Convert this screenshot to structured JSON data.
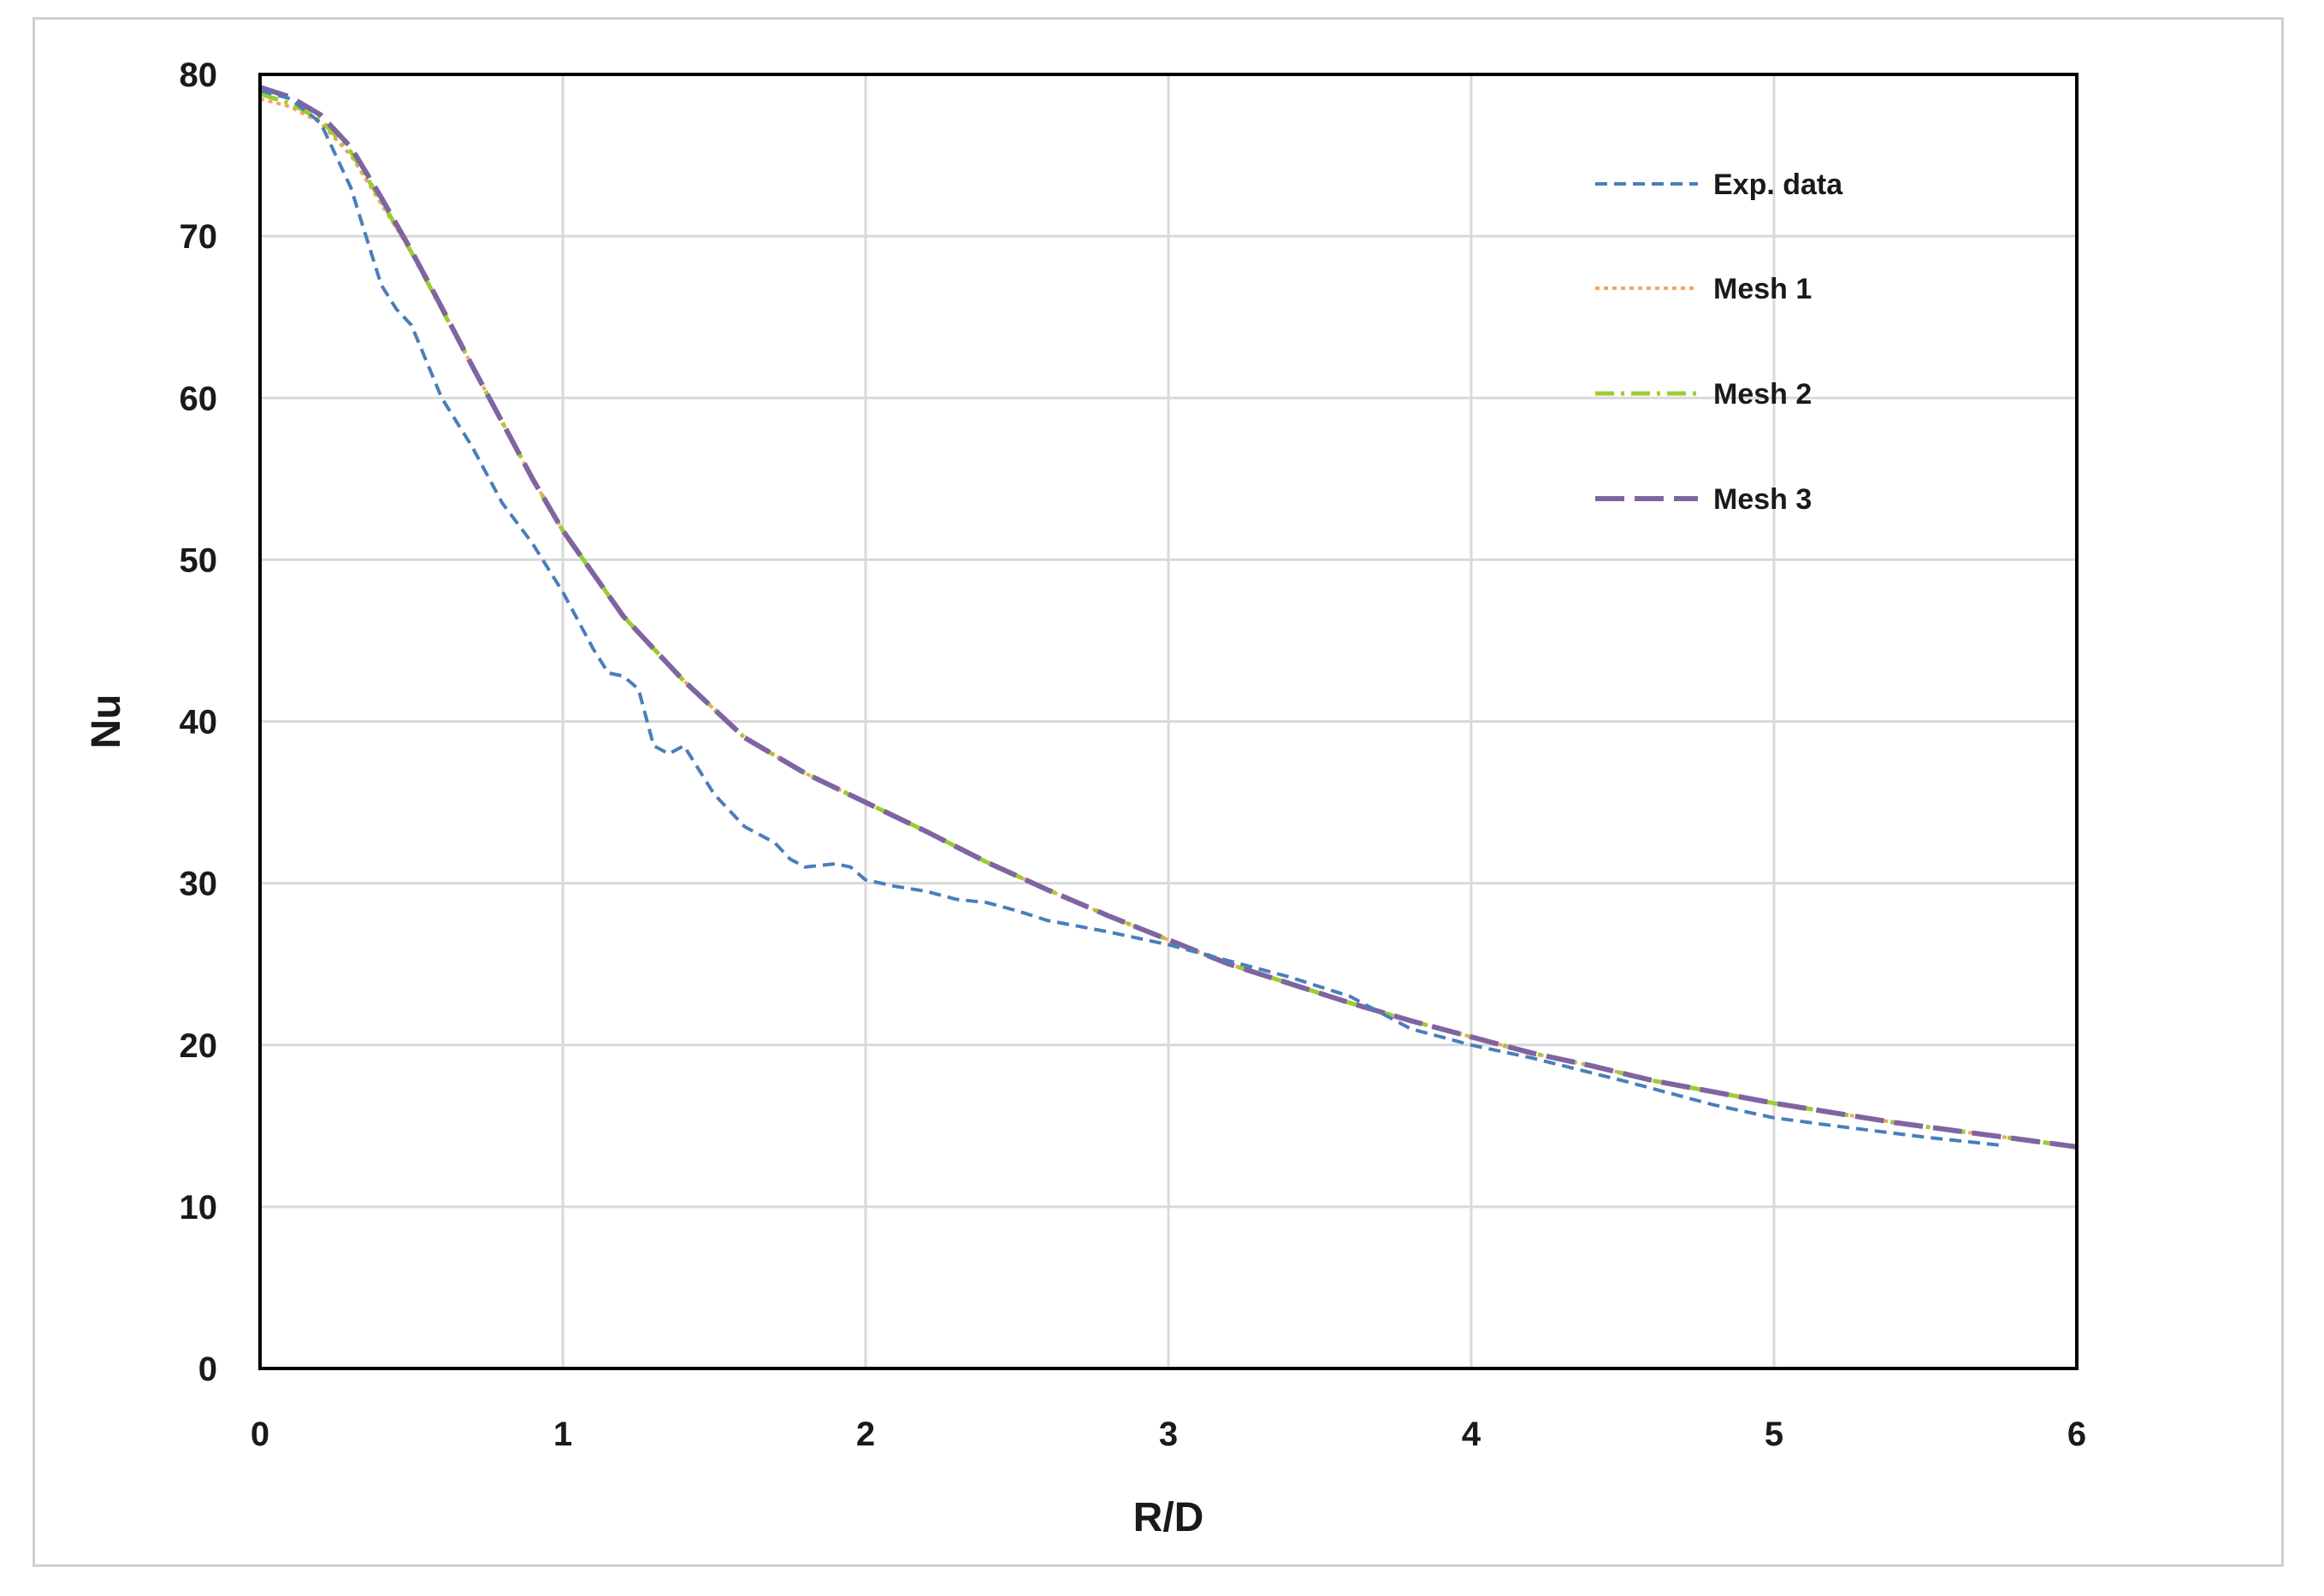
{
  "chart_data": {
    "type": "line",
    "xlabel": "R/D",
    "ylabel": "Nu",
    "xlim": [
      0,
      6
    ],
    "ylim": [
      0,
      80
    ],
    "xticks": [
      "0",
      "1",
      "2",
      "3",
      "4",
      "5",
      "6"
    ],
    "yticks": [
      "0",
      "10",
      "20",
      "30",
      "40",
      "50",
      "60",
      "70",
      "80"
    ],
    "grid": true,
    "legend_position": "top-right",
    "series": [
      {
        "name": "Exp. data",
        "color": "#4a7ebb",
        "style": "dashed",
        "x": [
          0,
          0.1,
          0.2,
          0.3,
          0.35,
          0.4,
          0.45,
          0.5,
          0.6,
          0.7,
          0.8,
          0.9,
          1.0,
          1.1,
          1.15,
          1.2,
          1.25,
          1.3,
          1.35,
          1.4,
          1.5,
          1.6,
          1.7,
          1.75,
          1.8,
          1.9,
          1.95,
          2.0,
          2.1,
          2.2,
          2.3,
          2.4,
          2.5,
          2.6,
          2.8,
          3.0,
          3.2,
          3.4,
          3.6,
          3.8,
          4.0,
          4.2,
          4.5,
          4.8,
          5.0,
          5.2,
          5.5,
          5.75
        ],
        "y": [
          79,
          78.5,
          77,
          73,
          70,
          67,
          65.5,
          64.5,
          60,
          57,
          53.5,
          51,
          48,
          44.5,
          43,
          42.8,
          42,
          38.5,
          38,
          38.5,
          35.5,
          33.5,
          32.5,
          31.5,
          31,
          31.2,
          31,
          30.2,
          29.8,
          29.5,
          29,
          28.8,
          28.3,
          27.7,
          27,
          26.2,
          25.2,
          24.2,
          23,
          21,
          20,
          19.2,
          17.8,
          16.3,
          15.5,
          15,
          14.3,
          13.8
        ]
      },
      {
        "name": "Mesh 1",
        "color": "#f4a460",
        "style": "dotted",
        "x": [
          0,
          0.1,
          0.2,
          0.3,
          0.4,
          0.5,
          0.6,
          0.7,
          0.8,
          0.9,
          1.0,
          1.2,
          1.4,
          1.6,
          1.8,
          2.0,
          2.2,
          2.4,
          2.6,
          2.8,
          3.0,
          3.2,
          3.4,
          3.6,
          3.8,
          4.0,
          4.2,
          4.4,
          4.6,
          4.8,
          5.0,
          5.2,
          5.4,
          5.6,
          5.8,
          6.0
        ],
        "y": [
          78.5,
          78,
          77,
          75,
          72,
          69,
          65.5,
          62,
          58.5,
          55,
          51.8,
          46.5,
          42.5,
          39,
          36.8,
          35,
          33.2,
          31.3,
          29.6,
          28,
          26.5,
          25,
          23.8,
          22.6,
          21.5,
          20.5,
          19.5,
          18.7,
          17.8,
          17.1,
          16.4,
          15.8,
          15.2,
          14.7,
          14.2,
          13.7
        ]
      },
      {
        "name": "Mesh 2",
        "color": "#9acd32",
        "style": "dash-dot",
        "x": [
          0,
          0.1,
          0.2,
          0.3,
          0.4,
          0.5,
          0.6,
          0.7,
          0.8,
          0.9,
          1.0,
          1.2,
          1.4,
          1.6,
          1.8,
          2.0,
          2.2,
          2.4,
          2.6,
          2.8,
          3.0,
          3.2,
          3.4,
          3.6,
          3.8,
          4.0,
          4.2,
          4.4,
          4.6,
          4.8,
          5.0,
          5.2,
          5.4,
          5.6,
          5.8,
          6.0
        ],
        "y": [
          78.8,
          78.2,
          77.2,
          75.2,
          72.2,
          69,
          65.5,
          62,
          58.5,
          55,
          51.8,
          46.5,
          42.5,
          39,
          36.8,
          35,
          33.2,
          31.3,
          29.6,
          28,
          26.5,
          25,
          23.8,
          22.6,
          21.5,
          20.5,
          19.5,
          18.7,
          17.8,
          17.1,
          16.4,
          15.8,
          15.2,
          14.7,
          14.2,
          13.7
        ]
      },
      {
        "name": "Mesh 3",
        "color": "#8064a2",
        "style": "long-dash",
        "x": [
          0,
          0.1,
          0.2,
          0.3,
          0.4,
          0.5,
          0.6,
          0.7,
          0.8,
          0.9,
          1.0,
          1.2,
          1.4,
          1.6,
          1.8,
          2.0,
          2.2,
          2.4,
          2.6,
          2.8,
          3.0,
          3.2,
          3.4,
          3.6,
          3.8,
          4.0,
          4.2,
          4.4,
          4.6,
          4.8,
          5.0,
          5.2,
          5.4,
          5.6,
          5.8,
          6.0
        ],
        "y": [
          79.2,
          78.6,
          77.5,
          75.5,
          72.4,
          69.1,
          65.6,
          62,
          58.5,
          55,
          51.8,
          46.5,
          42.5,
          39,
          36.8,
          35,
          33.2,
          31.3,
          29.6,
          28,
          26.5,
          25,
          23.8,
          22.6,
          21.5,
          20.5,
          19.5,
          18.7,
          17.8,
          17.1,
          16.4,
          15.8,
          15.2,
          14.7,
          14.2,
          13.7
        ]
      }
    ]
  }
}
